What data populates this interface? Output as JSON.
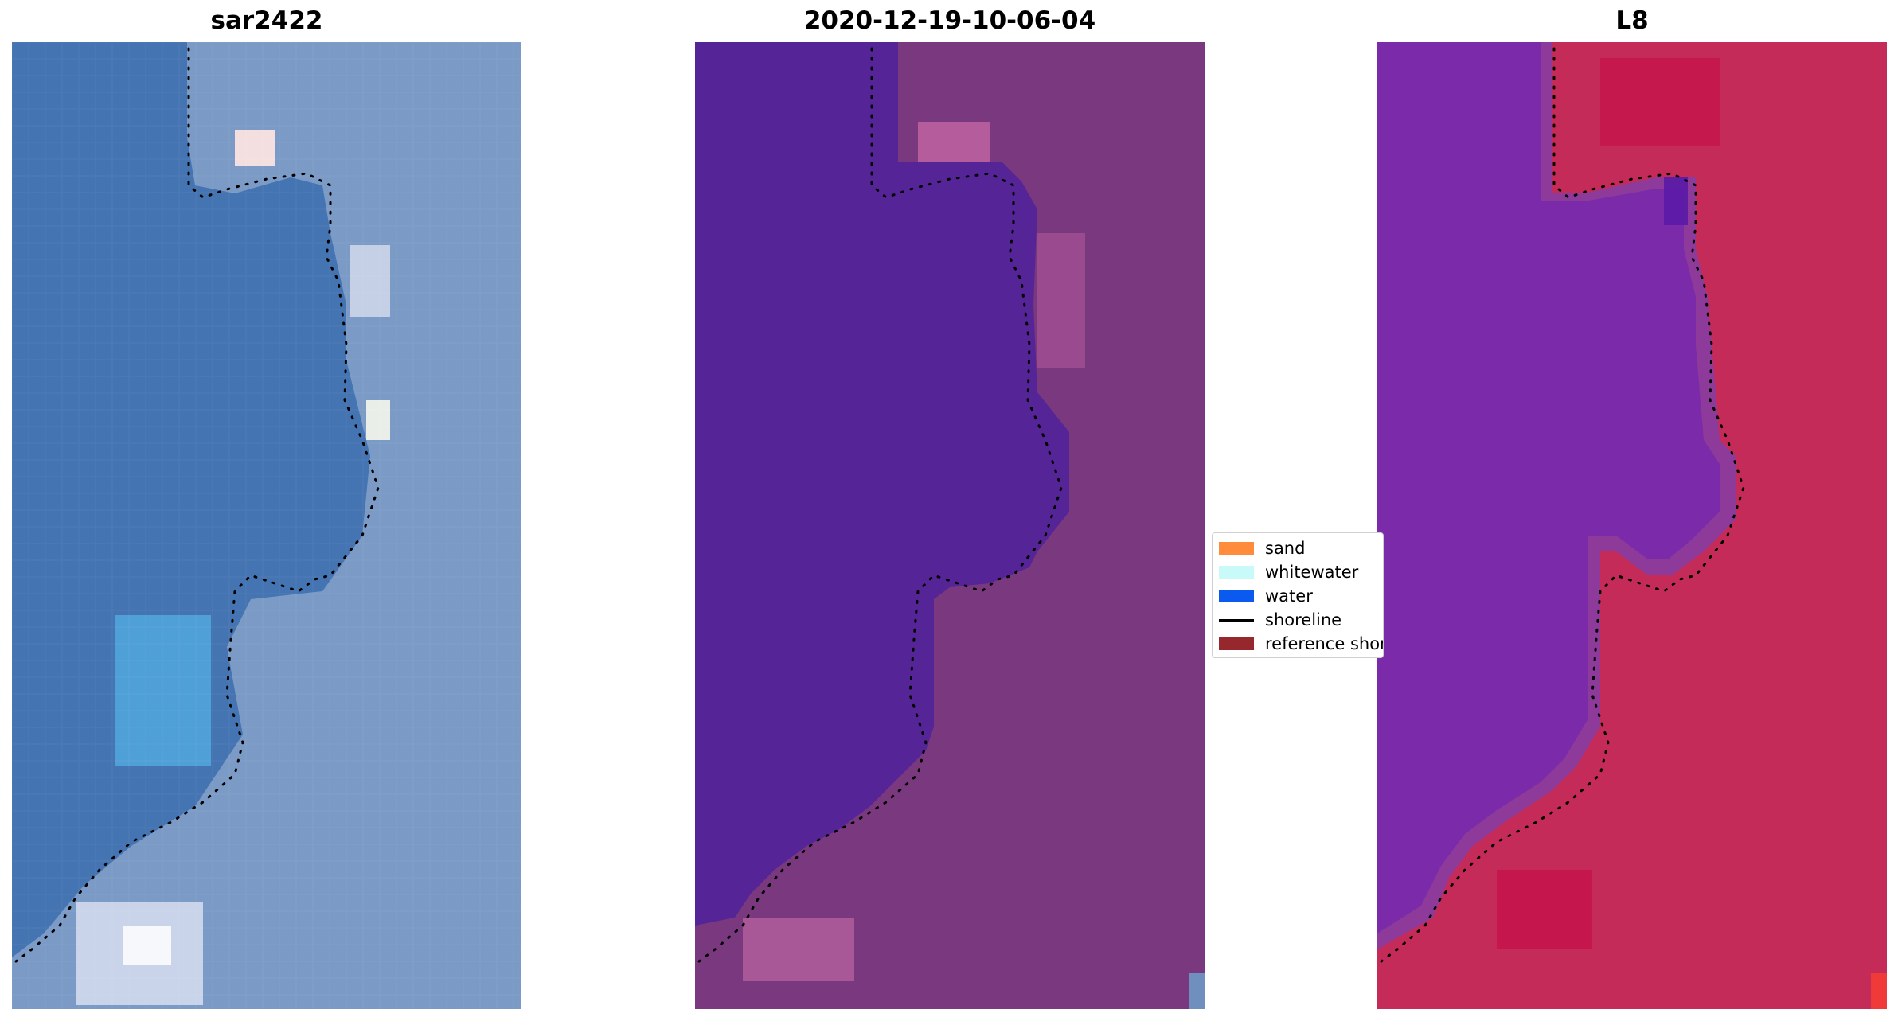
{
  "panels": [
    {
      "title": "sar2422"
    },
    {
      "title": "2020-12-19-10-06-04"
    },
    {
      "title": "L8"
    }
  ],
  "legend": {
    "items": [
      {
        "label": "sand",
        "color": "#ff8c3c",
        "kind": "patch"
      },
      {
        "label": "whitewater",
        "color": "#c8fafa",
        "kind": "patch"
      },
      {
        "label": "water",
        "color": "#0a5af0",
        "kind": "patch"
      },
      {
        "label": "shoreline",
        "color": "#000000",
        "kind": "line"
      },
      {
        "label": "reference shoreline",
        "color": "#96282d",
        "kind": "patch"
      }
    ]
  },
  "colors": {
    "rgb_water": "#3f70b0",
    "rgb_land": "#7d9dc6",
    "classified_water": "#54249a",
    "classified_land": "#7c3a7e",
    "index_water": "#7f2aa8",
    "index_land": "#c42a5a"
  }
}
